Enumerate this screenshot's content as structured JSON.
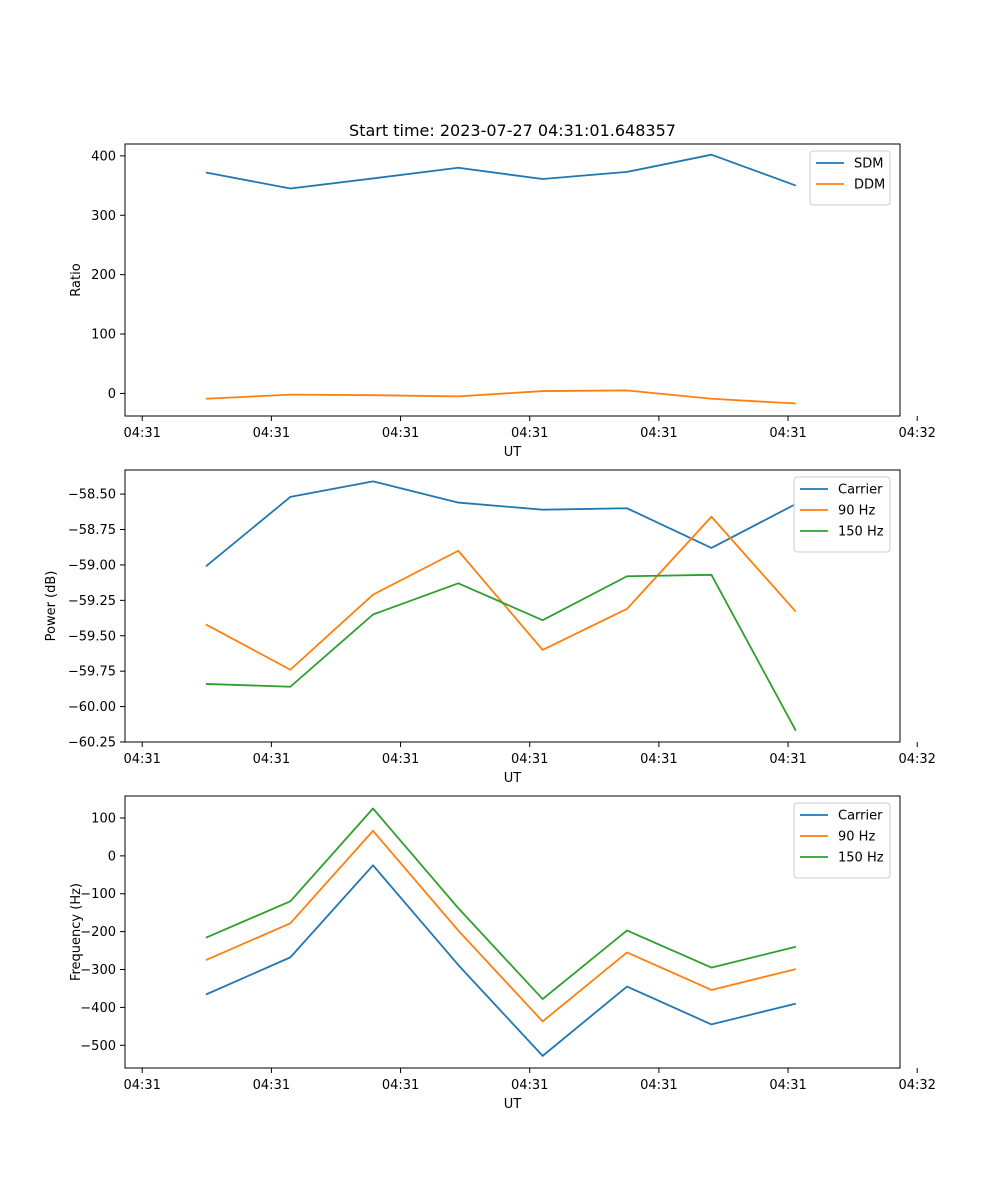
{
  "chart_data": [
    {
      "type": "line",
      "title": "Start time: 2023-07-27 04:31:01.648357",
      "xlabel": "UT",
      "ylabel": "Ratio",
      "xlim": [
        -0.7,
        8.3
      ],
      "ylim": [
        -38,
        420
      ],
      "xticks": [
        {
          "v": -0.5,
          "label": "04:31"
        },
        {
          "v": 1,
          "label": "04:31"
        },
        {
          "v": 2.5,
          "label": "04:31"
        },
        {
          "v": 4,
          "label": "04:31"
        },
        {
          "v": 5.5,
          "label": "04:31"
        },
        {
          "v": 7,
          "label": "04:31"
        },
        {
          "v": 8.5,
          "label": "04:32"
        }
      ],
      "yticks": [
        {
          "v": 0,
          "label": "0"
        },
        {
          "v": 100,
          "label": "100"
        },
        {
          "v": 200,
          "label": "200"
        },
        {
          "v": 300,
          "label": "300"
        },
        {
          "v": 400,
          "label": "400"
        }
      ],
      "x": [
        0.24,
        1.22,
        2.18,
        3.17,
        4.15,
        5.13,
        6.11,
        7.09
      ],
      "series": [
        {
          "name": "SDM",
          "color": "#1f77b4",
          "values": [
            372,
            345,
            362,
            380,
            361,
            373,
            402,
            350
          ]
        },
        {
          "name": "DDM",
          "color": "#ff7f0e",
          "values": [
            -9,
            -2,
            -3,
            -5,
            4,
            5,
            -9,
            -17
          ]
        }
      ],
      "legend": "top-right"
    },
    {
      "type": "line",
      "title": "",
      "xlabel": "UT",
      "ylabel": "Power (dB)",
      "xlim": [
        -0.7,
        8.3
      ],
      "ylim": [
        -60.25,
        -58.33
      ],
      "xticks": [
        {
          "v": -0.5,
          "label": "04:31"
        },
        {
          "v": 1,
          "label": "04:31"
        },
        {
          "v": 2.5,
          "label": "04:31"
        },
        {
          "v": 4,
          "label": "04:31"
        },
        {
          "v": 5.5,
          "label": "04:31"
        },
        {
          "v": 7,
          "label": "04:31"
        },
        {
          "v": 8.5,
          "label": "04:32"
        }
      ],
      "yticks": [
        {
          "v": -58.5,
          "label": "−58.50"
        },
        {
          "v": -58.75,
          "label": "−58.75"
        },
        {
          "v": -59.0,
          "label": "−59.00"
        },
        {
          "v": -59.25,
          "label": "−59.25"
        },
        {
          "v": -59.5,
          "label": "−59.50"
        },
        {
          "v": -59.75,
          "label": "−59.75"
        },
        {
          "v": -60.0,
          "label": "−60.00"
        },
        {
          "v": -60.25,
          "label": "−60.25"
        }
      ],
      "x": [
        0.24,
        1.22,
        2.18,
        3.17,
        4.15,
        5.13,
        6.11,
        7.09
      ],
      "series": [
        {
          "name": "Carrier",
          "color": "#1f77b4",
          "values": [
            -59.01,
            -58.52,
            -58.41,
            -58.56,
            -58.61,
            -58.6,
            -58.88,
            -58.57
          ]
        },
        {
          "name": "90 Hz",
          "color": "#ff7f0e",
          "values": [
            -59.42,
            -59.74,
            -59.21,
            -58.9,
            -59.6,
            -59.31,
            -58.66,
            -59.33
          ]
        },
        {
          "name": "150 Hz",
          "color": "#2ca02c",
          "values": [
            -59.84,
            -59.86,
            -59.35,
            -59.13,
            -59.39,
            -59.08,
            -59.07,
            -60.17
          ]
        }
      ],
      "legend": "top-right"
    },
    {
      "type": "line",
      "title": "",
      "xlabel": "UT",
      "ylabel": "Frequency (Hz)",
      "xlim": [
        -0.7,
        8.3
      ],
      "ylim": [
        -560,
        158
      ],
      "xticks": [
        {
          "v": -0.5,
          "label": "04:31"
        },
        {
          "v": 1,
          "label": "04:31"
        },
        {
          "v": 2.5,
          "label": "04:31"
        },
        {
          "v": 4,
          "label": "04:31"
        },
        {
          "v": 5.5,
          "label": "04:31"
        },
        {
          "v": 7,
          "label": "04:31"
        },
        {
          "v": 8.5,
          "label": "04:32"
        }
      ],
      "yticks": [
        {
          "v": 100,
          "label": "100"
        },
        {
          "v": 0,
          "label": "0"
        },
        {
          "v": -100,
          "label": "−100"
        },
        {
          "v": -200,
          "label": "−200"
        },
        {
          "v": -300,
          "label": "−300"
        },
        {
          "v": -400,
          "label": "−400"
        },
        {
          "v": -500,
          "label": "−500"
        }
      ],
      "x": [
        0.24,
        1.22,
        2.18,
        3.17,
        4.15,
        5.13,
        6.11,
        7.09
      ],
      "series": [
        {
          "name": "Carrier",
          "color": "#1f77b4",
          "values": [
            -366,
            -268,
            -25,
            -288,
            -528,
            -345,
            -445,
            -390
          ]
        },
        {
          "name": "90 Hz",
          "color": "#ff7f0e",
          "values": [
            -275,
            -178,
            66,
            -197,
            -437,
            -255,
            -354,
            -299
          ]
        },
        {
          "name": "150 Hz",
          "color": "#2ca02c",
          "values": [
            -216,
            -120,
            125,
            -138,
            -378,
            -197,
            -295,
            -240
          ]
        }
      ],
      "legend": "top-right"
    }
  ]
}
